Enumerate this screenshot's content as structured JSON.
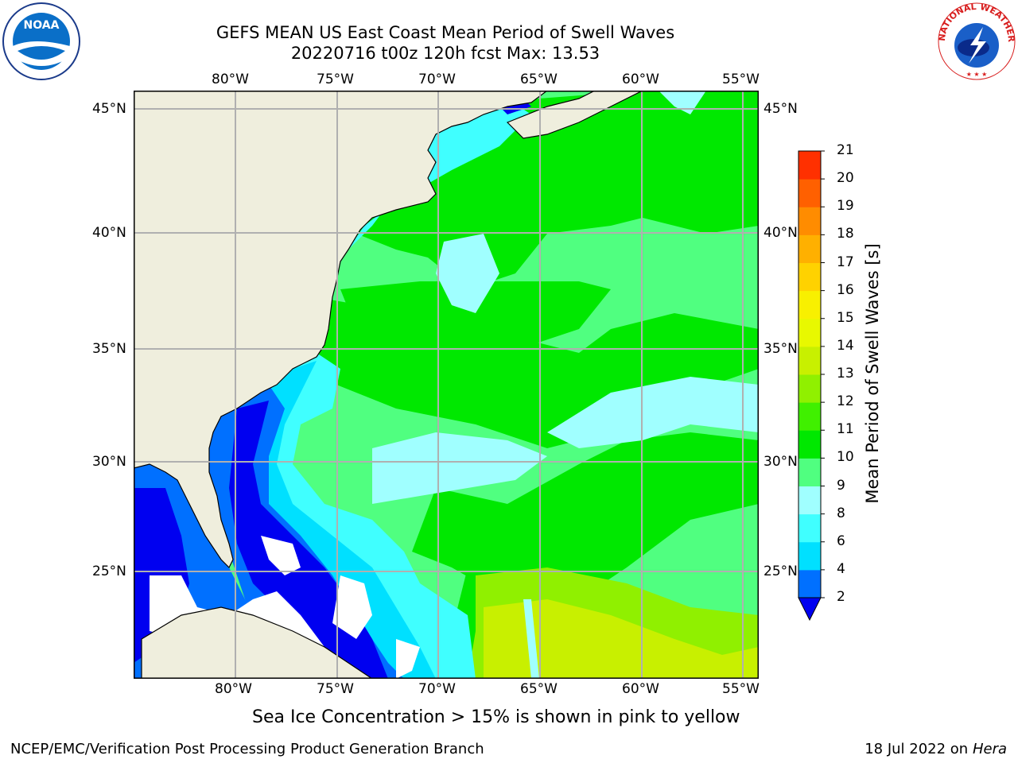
{
  "title_line1": "GEFS MEAN US East Coast Mean Period of Swell Waves",
  "title_line2": "20220716 t00z 120h fcst   Max: 13.53",
  "caption": "Sea Ice Concentration > 15% is shown in pink to yellow",
  "footer_left": "NCEP/EMC/Verification Post Processing Product Generation Branch",
  "footer_right_date": "18 Jul 2022 on ",
  "footer_right_host": "Hera",
  "logos": {
    "left": "NOAA",
    "right_text": "NATIONAL WEATHER SERVICE"
  },
  "map": {
    "lon_labels": [
      "80°W",
      "75°W",
      "70°W",
      "65°W",
      "60°W",
      "55°W"
    ],
    "lat_labels": [
      "45°N",
      "40°N",
      "35°N",
      "30°N",
      "25°N"
    ],
    "colors": {
      "land": "#efeedd",
      "coast": "#000000",
      "grid": "#b0b0b0",
      "missing": "#ffffff"
    }
  },
  "colorbar": {
    "label": "Mean Period of Swell Waves [s]",
    "ticks": [
      "2",
      "4",
      "6",
      "8",
      "9",
      "10",
      "11",
      "12",
      "13",
      "14",
      "15",
      "16",
      "17",
      "18",
      "19",
      "20",
      "21"
    ],
    "colors": [
      "#0070ff",
      "#00e0ff",
      "#40ffff",
      "#a0ffff",
      "#50ff80",
      "#00e800",
      "#40f000",
      "#90f000",
      "#c8f000",
      "#e8f800",
      "#f8f000",
      "#ffd200",
      "#ffb000",
      "#ff8c00",
      "#ff6000",
      "#ff3000"
    ],
    "under_color": "#0000f0"
  }
}
